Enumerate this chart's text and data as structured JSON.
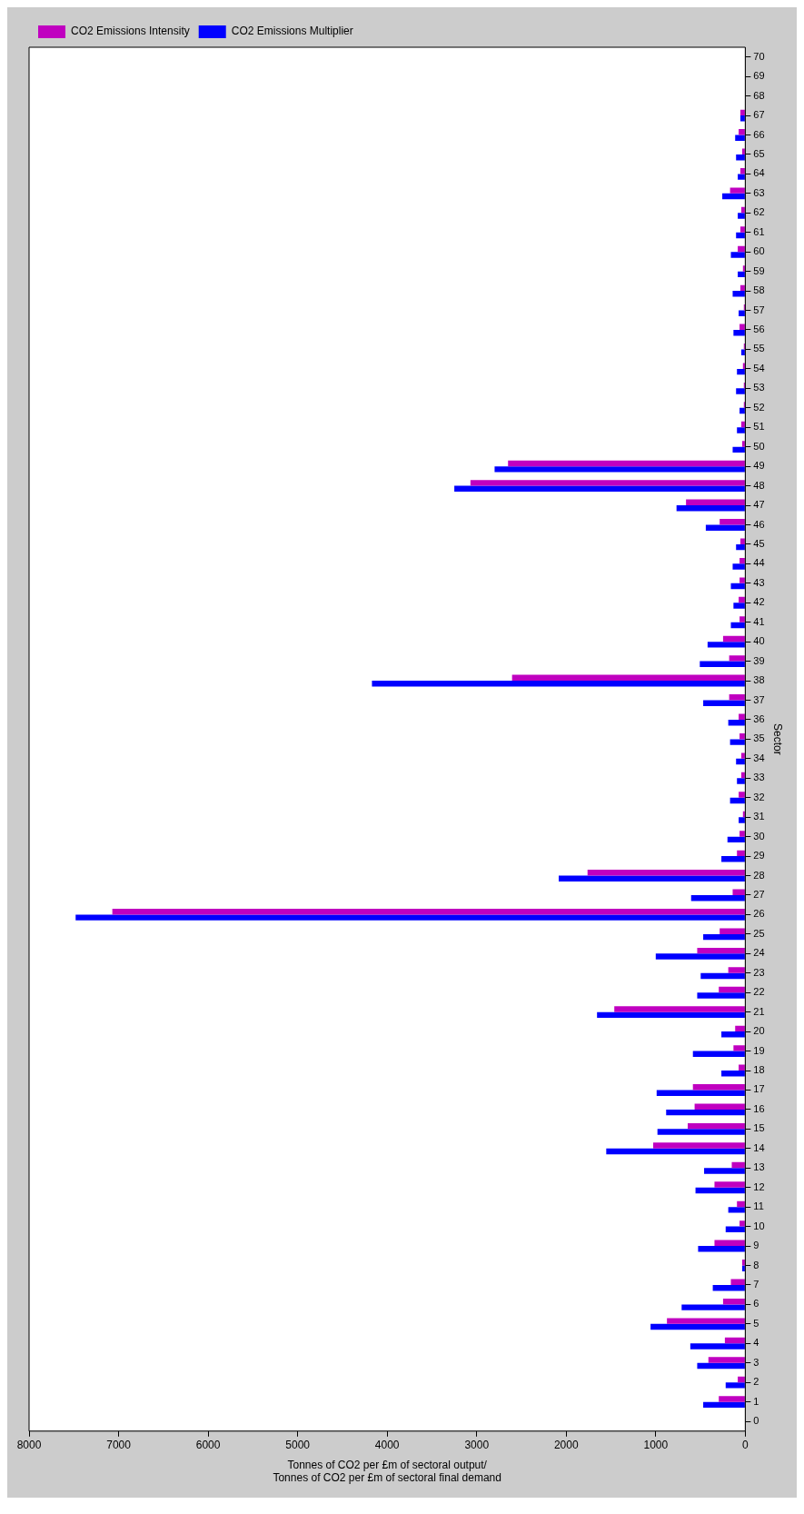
{
  "chart_data": {
    "type": "bar",
    "orientation": "horizontal",
    "xlabel": "Tonnes of CO2 per £m of sectoral output/\nTonnes of CO2 per £m of sectoral final demand",
    "ylabel": "Sector",
    "categories": [
      "70",
      "69",
      "68",
      "67",
      "66",
      "65",
      "64",
      "63",
      "62",
      "61",
      "60",
      "59",
      "58",
      "57",
      "56",
      "55",
      "54",
      "53",
      "52",
      "51",
      "50",
      "49",
      "48",
      "47",
      "46",
      "45",
      "44",
      "43",
      "42",
      "41",
      "40",
      "39",
      "38",
      "37",
      "36",
      "35",
      "34",
      "33",
      "32",
      "31",
      "30",
      "29",
      "28",
      "27",
      "26",
      "25",
      "24",
      "23",
      "22",
      "21",
      "20",
      "19",
      "18",
      "17",
      "16",
      "15",
      "14",
      "13",
      "12",
      "11",
      "10",
      "9",
      "8",
      "7",
      "6",
      "5",
      "4",
      "3",
      "2",
      "1",
      "0"
    ],
    "series": [
      {
        "name": "CO2 Emissions Intensity",
        "color": "#c000c0",
        "values": [
          null,
          null,
          null,
          55,
          74,
          35,
          55,
          170,
          45,
          55,
          84,
          26,
          55,
          16,
          64,
          16,
          26,
          16,
          16,
          45,
          35,
          2650,
          3070,
          662,
          286,
          55,
          64,
          64,
          74,
          64,
          248,
          180,
          2605,
          180,
          74,
          64,
          45,
          45,
          74,
          26,
          64,
          93,
          1762,
          141,
          7070,
          286,
          537,
          190,
          296,
          1463,
          113,
          132,
          74,
          585,
          566,
          643,
          1029,
          151,
          344,
          93,
          64,
          344,
          35,
          161,
          248,
          875,
          228,
          412,
          84,
          296,
          null
        ]
      },
      {
        "name": "CO2 Emissions Multiplier",
        "color": "#0000ff",
        "values": [
          null,
          null,
          null,
          55,
          113,
          103,
          84,
          257,
          84,
          103,
          161,
          84,
          141,
          74,
          132,
          45,
          93,
          103,
          64,
          93,
          141,
          2800,
          3250,
          768,
          441,
          103,
          141,
          161,
          132,
          161,
          421,
          508,
          4170,
          470,
          190,
          170,
          103,
          93,
          170,
          74,
          199,
          267,
          2084,
          605,
          7480,
          470,
          1000,
          498,
          537,
          1656,
          267,
          585,
          267,
          990,
          884,
          981,
          1553,
          460,
          556,
          190,
          219,
          527,
          35,
          363,
          711,
          1058,
          614,
          537,
          219,
          470,
          null
        ]
      }
    ],
    "xlim": [
      8000,
      0
    ],
    "xticks": [
      0,
      1000,
      2000,
      3000,
      4000,
      5000,
      6000,
      7000,
      8000
    ],
    "legend": "top left"
  }
}
